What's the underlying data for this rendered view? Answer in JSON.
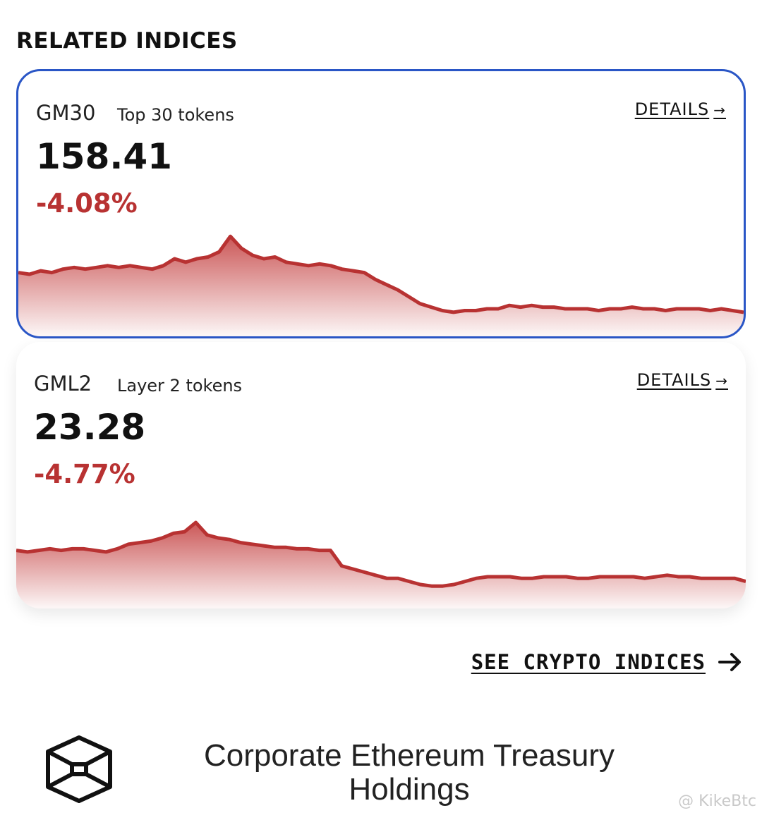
{
  "section_title": "RELATED INDICES",
  "colors": {
    "accent_border": "#2a56c6",
    "negative": "#b83232"
  },
  "indices": [
    {
      "symbol": "GM30",
      "description": "Top 30 tokens",
      "details_label": "DETAILS",
      "value": "158.41",
      "change": "-4.08%",
      "selected": true
    },
    {
      "symbol": "GML2",
      "description": "Layer 2 tokens",
      "details_label": "DETAILS",
      "value": "23.28",
      "change": "-4.77%",
      "selected": false
    }
  ],
  "chart_data": [
    {
      "type": "area",
      "series": [
        {
          "values": [
            62,
            61,
            63,
            62,
            64,
            65,
            64,
            65,
            66,
            65,
            66,
            65,
            64,
            66,
            70,
            68,
            70,
            71,
            74,
            83,
            76,
            72,
            70,
            71,
            68,
            67,
            66,
            67,
            66,
            64,
            63,
            62,
            58,
            55,
            52,
            48,
            44,
            42,
            40,
            39,
            40,
            40,
            41,
            41,
            43,
            42,
            43,
            42,
            42,
            41,
            41,
            41,
            40,
            41,
            41,
            42,
            41,
            41,
            40,
            41,
            41,
            41,
            40,
            41,
            40,
            39
          ]
        }
      ]
    },
    {
      "type": "area",
      "series": [
        {
          "values": [
            62,
            61,
            62,
            63,
            62,
            63,
            63,
            62,
            61,
            63,
            66,
            67,
            68,
            70,
            73,
            74,
            80,
            72,
            70,
            69,
            67,
            66,
            65,
            64,
            64,
            63,
            63,
            62,
            62,
            52,
            50,
            48,
            46,
            44,
            44,
            42,
            40,
            39,
            39,
            40,
            42,
            44,
            45,
            45,
            45,
            44,
            44,
            45,
            45,
            45,
            44,
            44,
            45,
            45,
            45,
            45,
            44,
            45,
            46,
            45,
            45,
            44,
            44,
            44,
            44,
            42
          ]
        }
      ]
    }
  ],
  "see_more": {
    "label": "SEE CRYPTO INDICES"
  },
  "corporate": {
    "title": "Corporate Ethereum Treasury Holdings"
  },
  "watermark": "@ KikeBtc"
}
